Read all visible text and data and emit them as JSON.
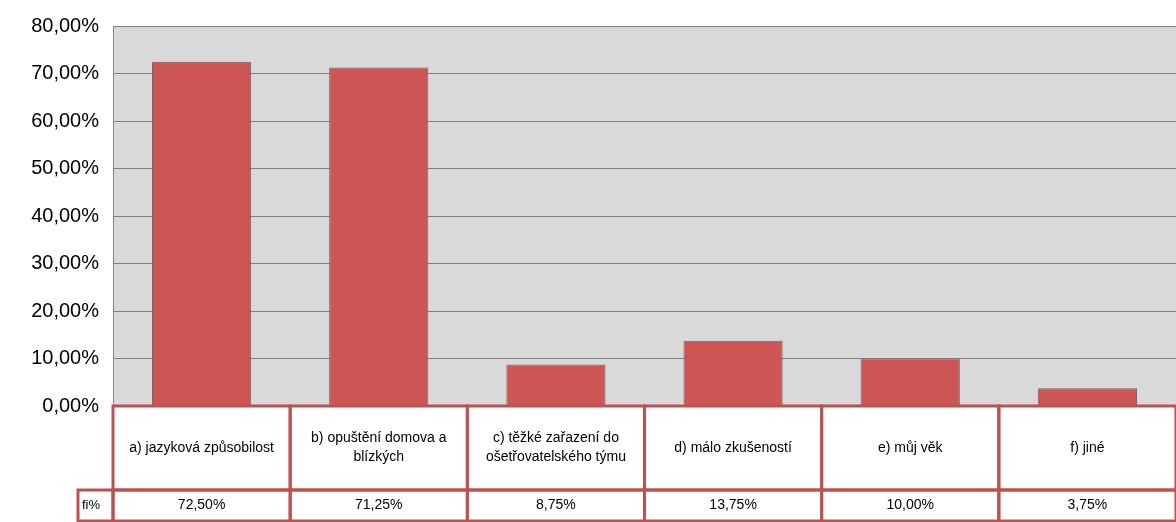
{
  "chart_data": {
    "type": "bar",
    "categories": [
      "a) jazyková způsobilost",
      "b) opuštění domova a blízkých",
      "c) těžké zařazení do ošetřovatelského týmu",
      "d) málo zkušeností",
      "e) můj věk",
      "f) jiné"
    ],
    "values": [
      72.5,
      71.25,
      8.75,
      13.75,
      10,
      3.75
    ],
    "value_labels": [
      "72,50%",
      "71,25%",
      "8,75%",
      "13,75%",
      "10,00%",
      "3,75%"
    ],
    "annotations": [
      "fi%"
    ],
    "color": "#cd5553",
    "ylim": [
      0,
      80
    ],
    "yticks": [
      {
        "value": 0,
        "label": "0,00%"
      },
      {
        "value": 10,
        "label": "10,00%"
      },
      {
        "value": 20,
        "label": "20,00%"
      },
      {
        "value": 30,
        "label": "30,00%"
      },
      {
        "value": 40,
        "label": "40,00%"
      },
      {
        "value": 50,
        "label": "50,00%"
      },
      {
        "value": 60,
        "label": "60,00%"
      },
      {
        "value": 70,
        "label": "70,00%"
      },
      {
        "value": 80,
        "label": "80,00%"
      }
    ],
    "grid": "y",
    "legend": false
  }
}
